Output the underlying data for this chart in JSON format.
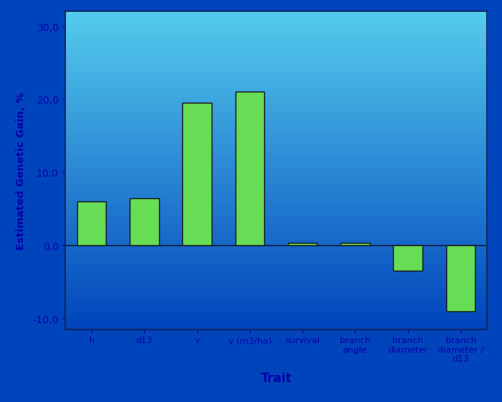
{
  "categories": [
    "h",
    "d13",
    "v",
    "v (m3/ha)",
    "survival",
    "branch\nangle",
    "branch\ndiameter",
    "branch\ndiameter /\nd13"
  ],
  "values": [
    6.0,
    6.5,
    19.5,
    21.0,
    0.3,
    0.3,
    -3.5,
    -9.0
  ],
  "bar_color": "#66DD55",
  "bar_edge_color": "#1a1a1a",
  "ylabel": "Estimated Genetic Gain, %",
  "xlabel": "Trait",
  "yticks": [
    -10.0,
    0.0,
    10.0,
    20.0,
    30.0
  ],
  "ytick_labels": [
    "-10,0",
    "0,0",
    "10,0",
    "20,0",
    "30,0"
  ],
  "ylim": [
    -11.5,
    32.0
  ],
  "bg_top_color": "#55CCEE",
  "bg_bottom_color": "#0044BB",
  "tick_color": "#0000AA",
  "label_color": "#0000AA",
  "zero_line_color": "#111133",
  "bar_width": 0.55,
  "figsize": [
    6.31,
    5.06
  ],
  "dpi": 100
}
